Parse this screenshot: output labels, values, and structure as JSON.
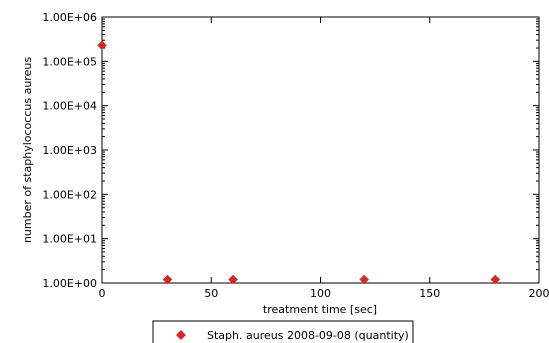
{
  "chart_data": {
    "type": "scatter",
    "xlabel": "treatment time [sec]",
    "ylabel": "number of staphylococcus aureus",
    "x_scale": "linear",
    "y_scale": "log",
    "xlim": [
      0,
      200
    ],
    "ylim": [
      1,
      1000000
    ],
    "x_ticks": [
      0,
      50,
      100,
      150,
      200
    ],
    "x_tick_labels": [
      "0",
      "50",
      "100",
      "150",
      "200"
    ],
    "y_ticks": [
      1,
      10,
      100,
      1000,
      10000,
      100000,
      1000000
    ],
    "y_tick_labels": [
      "1.00E+00",
      "1.00E+01",
      "1.00E+02",
      "1.00E+03",
      "1.00E+04",
      "1.00E+05",
      "1.00E+06"
    ],
    "grid": false,
    "legend_position": "bottom-center",
    "series": [
      {
        "name": "Staph. aureus 2008-09-08 (quantity)",
        "color": "#d62728",
        "marker": "diamond",
        "x": [
          0,
          30,
          60,
          120,
          180
        ],
        "y": [
          230000,
          1.2,
          1.2,
          1.2,
          1.2
        ]
      }
    ]
  }
}
